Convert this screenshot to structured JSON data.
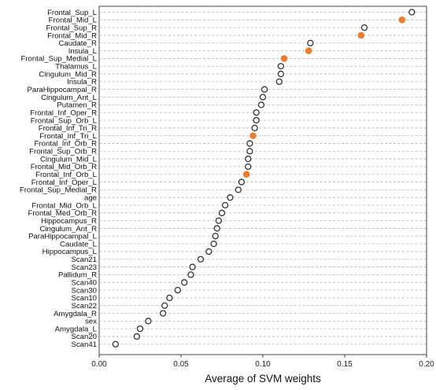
{
  "chart_data": {
    "type": "scatter",
    "xlabel": "Average of SVM weights",
    "xlim": [
      0.0,
      0.2
    ],
    "xticks": [
      "0.00",
      "0.05",
      "0.10",
      "0.15",
      "0.20"
    ],
    "grid": "horizontal-dashed",
    "colors": {
      "hollow": "#333333",
      "highlight": "#ed7d31"
    },
    "points": [
      {
        "label": "Frontal_Sup_L",
        "value": 0.191,
        "highlight": false
      },
      {
        "label": "Frontal_Mid_L",
        "value": 0.185,
        "highlight": true
      },
      {
        "label": "Frontal_Sup_R",
        "value": 0.162,
        "highlight": false
      },
      {
        "label": "Frontal_Mid_R",
        "value": 0.16,
        "highlight": true
      },
      {
        "label": "Caudate_R",
        "value": 0.129,
        "highlight": false
      },
      {
        "label": "Insula_L",
        "value": 0.128,
        "highlight": true
      },
      {
        "label": "Frontal_Sup_Medial_L",
        "value": 0.113,
        "highlight": true
      },
      {
        "label": "Thalamus_L",
        "value": 0.111,
        "highlight": false
      },
      {
        "label": "Cingulum_Mid_R",
        "value": 0.111,
        "highlight": false
      },
      {
        "label": "Insula_R",
        "value": 0.11,
        "highlight": false
      },
      {
        "label": "ParaHippocampal_R",
        "value": 0.101,
        "highlight": false
      },
      {
        "label": "Cingulum_Ant_L",
        "value": 0.1,
        "highlight": false
      },
      {
        "label": "Putamen_R",
        "value": 0.099,
        "highlight": false
      },
      {
        "label": "Frontal_Inf_Oper_R",
        "value": 0.096,
        "highlight": false
      },
      {
        "label": "Frontal_Sup_Orb_L",
        "value": 0.096,
        "highlight": false
      },
      {
        "label": "Frontal_Inf_Tri_R",
        "value": 0.095,
        "highlight": false
      },
      {
        "label": "Frontal_Inf_Tri_L",
        "value": 0.094,
        "highlight": true
      },
      {
        "label": "Frontal_Inf_Orb_R",
        "value": 0.092,
        "highlight": false
      },
      {
        "label": "Frontal_Sup_Orb_R",
        "value": 0.092,
        "highlight": false
      },
      {
        "label": "Cingulum_Mid_L",
        "value": 0.091,
        "highlight": false
      },
      {
        "label": "Frontal_Mid_Orb_R",
        "value": 0.091,
        "highlight": false
      },
      {
        "label": "Frontal_Inf_Orb_L",
        "value": 0.09,
        "highlight": true
      },
      {
        "label": "Frontal_Inf_Oper_L",
        "value": 0.087,
        "highlight": false
      },
      {
        "label": "Frontal_Sup_Medial_R",
        "value": 0.085,
        "highlight": false
      },
      {
        "label": "age",
        "value": 0.08,
        "highlight": false
      },
      {
        "label": "Frontal_Mid_Orb_L",
        "value": 0.077,
        "highlight": false
      },
      {
        "label": "Frontal_Med_Orb_R",
        "value": 0.075,
        "highlight": false
      },
      {
        "label": "Hippocampus_R",
        "value": 0.073,
        "highlight": false
      },
      {
        "label": "Cingulum_Ant_R",
        "value": 0.072,
        "highlight": false
      },
      {
        "label": "ParaHippocampal_L",
        "value": 0.071,
        "highlight": false
      },
      {
        "label": "Caudate_L",
        "value": 0.07,
        "highlight": false
      },
      {
        "label": "Hippocampus_L",
        "value": 0.067,
        "highlight": false
      },
      {
        "label": "Scan21",
        "value": 0.062,
        "highlight": false
      },
      {
        "label": "Scan23",
        "value": 0.057,
        "highlight": false
      },
      {
        "label": "Pallidum_R",
        "value": 0.056,
        "highlight": false
      },
      {
        "label": "Scan40",
        "value": 0.052,
        "highlight": false
      },
      {
        "label": "Scan30",
        "value": 0.048,
        "highlight": false
      },
      {
        "label": "Scan10",
        "value": 0.043,
        "highlight": false
      },
      {
        "label": "Scan22",
        "value": 0.04,
        "highlight": false
      },
      {
        "label": "Amygdala_R",
        "value": 0.039,
        "highlight": false
      },
      {
        "label": "sex",
        "value": 0.03,
        "highlight": false
      },
      {
        "label": "Amygdala_L",
        "value": 0.025,
        "highlight": false
      },
      {
        "label": "Scan20",
        "value": 0.023,
        "highlight": false
      },
      {
        "label": "Scan41",
        "value": 0.01,
        "highlight": false
      }
    ]
  }
}
